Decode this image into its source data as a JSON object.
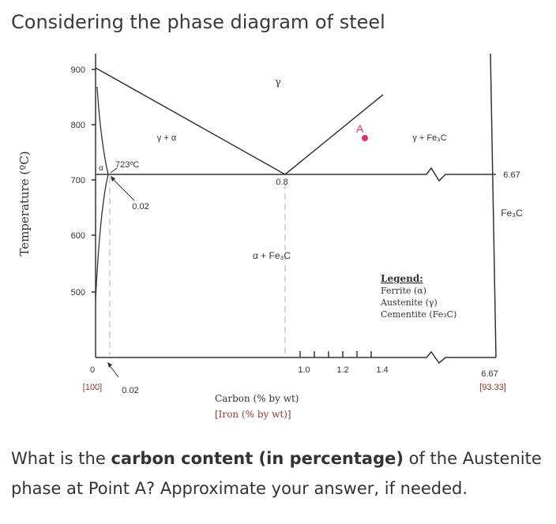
{
  "title": "Considering the phase diagram of steel",
  "diagram": {
    "y_axis_label": "Temperature (ºC)",
    "y_ticks": [
      "900",
      "800",
      "700",
      "600",
      "500",
      "0"
    ],
    "x_ticks": [
      "1.0",
      "1.2",
      "1.4",
      "6.67"
    ],
    "x_bottom_left": "[100]",
    "x_bottom_right": "[93.33]",
    "x_label": "Carbon (% by wt)",
    "x_label_2": "[Iron (% by wt)]",
    "phases": {
      "gamma": "γ",
      "gamma_alpha": "γ + α",
      "gamma_fe3c": "γ + Fe₃C",
      "alpha_fe3c": "α + Fe₃C",
      "alpha": "α",
      "fe3c": "Fe₃C"
    },
    "annotations": {
      "eutectoid_temp": "723ºC",
      "eutectoid_comp": "0.8",
      "alpha_max": "0.02",
      "alpha_bottom": "0.02",
      "fe3c_comp": "6.67",
      "point_a": "A"
    },
    "legend": {
      "title": "Legend:",
      "items": [
        "Ferrite (α)",
        "Austenite (γ)",
        "Cementite (Fe₃C)"
      ]
    },
    "colors": {
      "point_a": "#e0316f",
      "lines": "#333333",
      "guide": "#bbbbbb"
    }
  },
  "question": {
    "part1": "What is the ",
    "bold": "carbon content (in percentage)",
    "part2": " of the Austenite phase at Point A? Approximate your answer, if needed."
  }
}
